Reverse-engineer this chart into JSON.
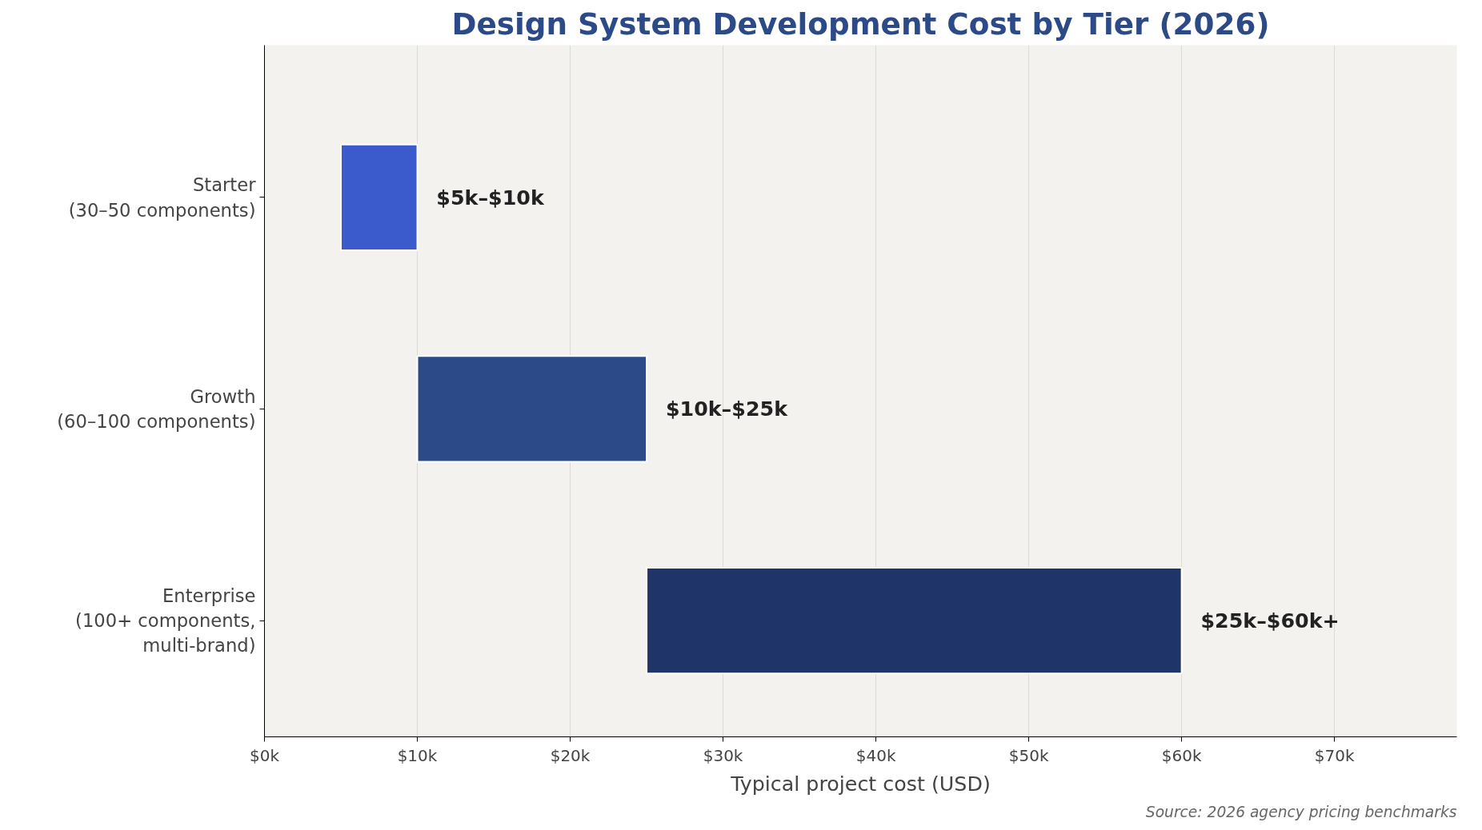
{
  "chart_data": {
    "type": "bar",
    "orientation": "horizontal",
    "title": "Design System Development Cost by Tier (2026)",
    "xlabel": "Typical project cost (USD)",
    "categories": [
      "Starter\n(30–50 components)",
      "Growth\n(60–100 components)",
      "Enterprise\n(100+ components,\nmulti-brand)"
    ],
    "base": [
      5,
      10,
      25
    ],
    "values": [
      5,
      15,
      35
    ],
    "colors": [
      "#3b5bcc",
      "#2c4a87",
      "#1f3469"
    ],
    "xlim": [
      0,
      78
    ],
    "xticks": [
      {
        "value": 0,
        "label": "$0k"
      },
      {
        "value": 10,
        "label": "$10k"
      },
      {
        "value": 20,
        "label": "$20k"
      },
      {
        "value": 30,
        "label": "$30k"
      },
      {
        "value": 40,
        "label": "$40k"
      },
      {
        "value": 50,
        "label": "$50k"
      },
      {
        "value": 60,
        "label": "$60k"
      },
      {
        "value": 70,
        "label": "$70k"
      }
    ],
    "grid": "x",
    "annotations": [
      {
        "text": "$5k–$10k",
        "x": 10,
        "y": "Starter\n(30–50 components)"
      },
      {
        "text": "$10k–$25k",
        "x": 25,
        "y": "Growth\n(60–100 components)"
      },
      {
        "text": "$25k–$60k+",
        "x": 60,
        "y": "Enterprise\n(100+ components,\nmulti-brand)"
      },
      "Source: 2026 agency pricing benchmarks"
    ]
  }
}
